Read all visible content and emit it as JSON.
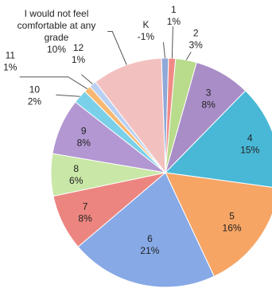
{
  "chart_data": {
    "type": "pie",
    "title": "",
    "start_angle_deg": -2,
    "slices": [
      {
        "category": "K",
        "value": -1,
        "percent_label": "-1%",
        "color": "#8FA8D8"
      },
      {
        "category": "1",
        "value": 1,
        "percent_label": "1%",
        "color": "#F08A86"
      },
      {
        "category": "2",
        "value": 3,
        "percent_label": "3%",
        "color": "#B8DB8C"
      },
      {
        "category": "3",
        "value": 8,
        "percent_label": "8%",
        "color": "#A98DC7"
      },
      {
        "category": "4",
        "value": 15,
        "percent_label": "15%",
        "color": "#49B8D6"
      },
      {
        "category": "5",
        "value": 16,
        "percent_label": "16%",
        "color": "#F6A565"
      },
      {
        "category": "6",
        "value": 21,
        "percent_label": "21%",
        "color": "#87A9E6"
      },
      {
        "category": "7",
        "value": 8,
        "percent_label": "8%",
        "color": "#EC8580"
      },
      {
        "category": "8",
        "value": 6,
        "percent_label": "6%",
        "color": "#C9E7A6"
      },
      {
        "category": "9",
        "value": 8,
        "percent_label": "8%",
        "color": "#B297D2"
      },
      {
        "category": "10",
        "value": 2,
        "percent_label": "2%",
        "color": "#79D0E8"
      },
      {
        "category": "11",
        "value": 1,
        "percent_label": "1%",
        "color": "#F8B872"
      },
      {
        "category": "12",
        "value": 1,
        "percent_label": "1%",
        "color": "#B9D0F2"
      },
      {
        "category": "I would not feel comfortable at any grade",
        "value": 10,
        "percent_label": "10%",
        "color": "#F3C0C0"
      }
    ]
  }
}
